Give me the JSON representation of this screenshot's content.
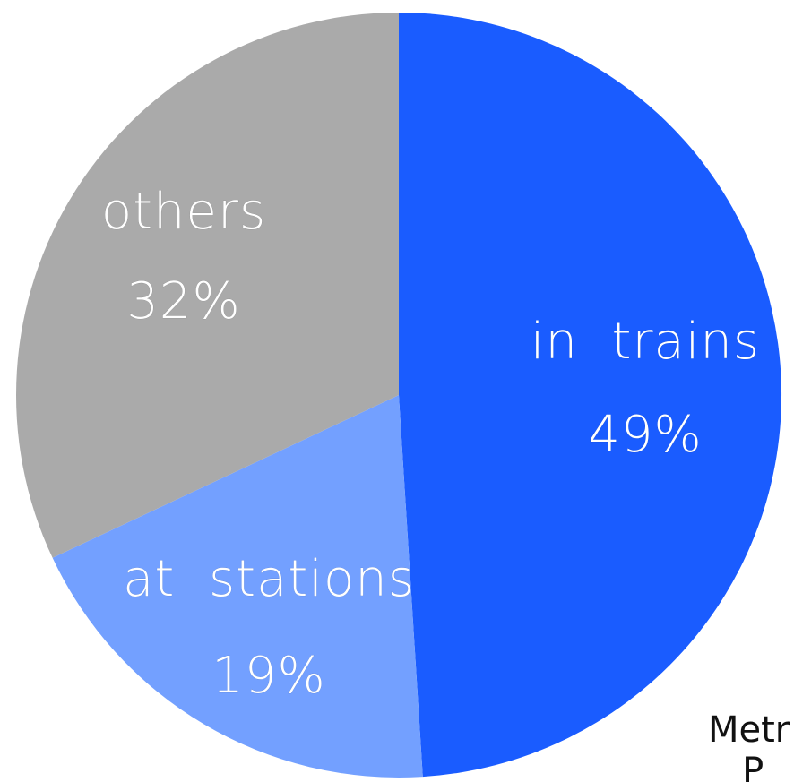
{
  "chart_data": {
    "type": "pie",
    "title": "",
    "slices": [
      {
        "label": "in  trains",
        "value": 49,
        "display": "49%",
        "color": "#1a5cff"
      },
      {
        "label": "at  stations",
        "value": 19,
        "display": "19%",
        "color": "#73a0ff"
      },
      {
        "label": "others",
        "value": 32,
        "display": "32%",
        "color": "#aaaaaa"
      }
    ],
    "start": "12 o'clock",
    "direction": "clockwise"
  },
  "source_note": "Metr\n   P"
}
